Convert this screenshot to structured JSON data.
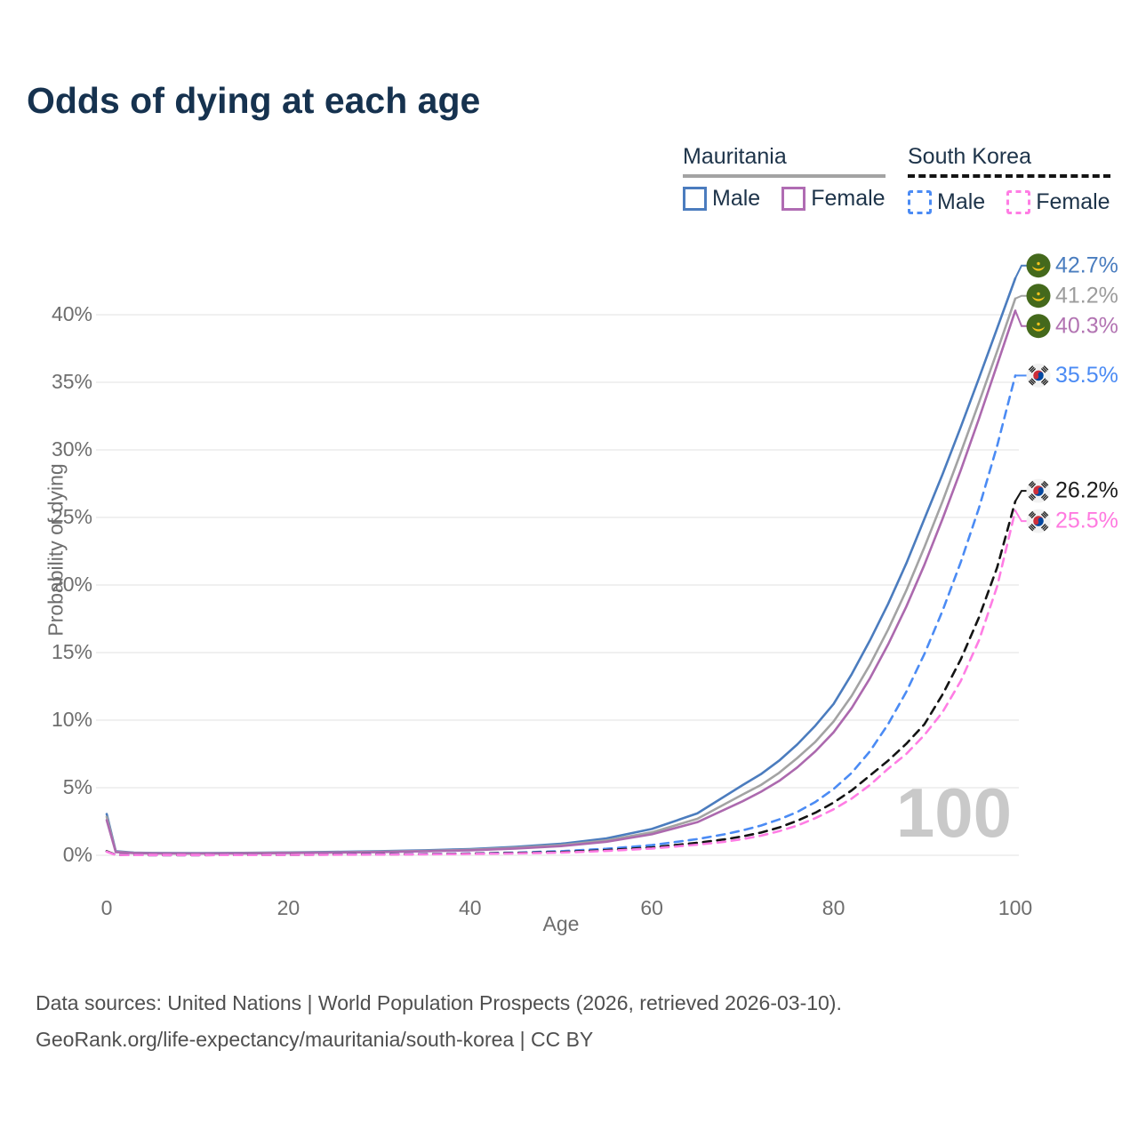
{
  "title": "Odds of dying at each age",
  "legend": {
    "groups": [
      {
        "label": "Mauritania",
        "line_style": "solid",
        "underline_color": "#a3a3a3",
        "items": [
          {
            "label": "Male",
            "color": "#4b7cbe"
          },
          {
            "label": "Female",
            "color": "#b06cb3"
          }
        ]
      },
      {
        "label": "South Korea",
        "line_style": "dashed",
        "underline_color": "#141414",
        "items": [
          {
            "label": "Male",
            "color": "#4b8bf4"
          },
          {
            "label": "Female",
            "color": "#ff7de4"
          }
        ]
      }
    ]
  },
  "chart_data": {
    "type": "line",
    "title": "Odds of dying at each age",
    "xlabel": "Age",
    "ylabel": "Probability of dying",
    "xlim": [
      0,
      100
    ],
    "ylim_pct": [
      0,
      44
    ],
    "grid": "horizontal",
    "watermark": "100",
    "x_ticks": [
      {
        "value": 0,
        "label": "0"
      },
      {
        "value": 20,
        "label": "20"
      },
      {
        "value": 40,
        "label": "40"
      },
      {
        "value": 60,
        "label": "60"
      },
      {
        "value": 80,
        "label": "80"
      },
      {
        "value": 100,
        "label": "100"
      }
    ],
    "y_ticks": [
      {
        "value": 0,
        "label": "0%"
      },
      {
        "value": 5,
        "label": "5%"
      },
      {
        "value": 10,
        "label": "10%"
      },
      {
        "value": 15,
        "label": "15%"
      },
      {
        "value": 20,
        "label": "20%"
      },
      {
        "value": 25,
        "label": "25%"
      },
      {
        "value": 30,
        "label": "30%"
      },
      {
        "value": 35,
        "label": "35%"
      },
      {
        "value": 40,
        "label": "40%"
      }
    ],
    "series": [
      {
        "name": "Mauritania Male",
        "country": "Mauritania",
        "sex": "Male",
        "color": "#4b7cbe",
        "dashed": false,
        "flag": "mauritania-flag-icon",
        "end_value": 42.7,
        "end_label": "42.7%",
        "label_color": "#4a7dbf",
        "points": [
          [
            0,
            3.05
          ],
          [
            1,
            0.3
          ],
          [
            3,
            0.2
          ],
          [
            5,
            0.17
          ],
          [
            10,
            0.16
          ],
          [
            15,
            0.18
          ],
          [
            20,
            0.21
          ],
          [
            25,
            0.25
          ],
          [
            30,
            0.3
          ],
          [
            35,
            0.37
          ],
          [
            40,
            0.46
          ],
          [
            45,
            0.62
          ],
          [
            50,
            0.85
          ],
          [
            55,
            1.25
          ],
          [
            60,
            1.95
          ],
          [
            65,
            3.1
          ],
          [
            70,
            5.2
          ],
          [
            72,
            6.0
          ],
          [
            74,
            7.0
          ],
          [
            76,
            8.2
          ],
          [
            78,
            9.6
          ],
          [
            80,
            11.2
          ],
          [
            82,
            13.4
          ],
          [
            84,
            15.9
          ],
          [
            86,
            18.6
          ],
          [
            88,
            21.6
          ],
          [
            90,
            24.9
          ],
          [
            92,
            28.2
          ],
          [
            94,
            31.7
          ],
          [
            96,
            35.3
          ],
          [
            98,
            39.0
          ],
          [
            100,
            42.7
          ]
        ]
      },
      {
        "name": "Mauritania Both sexes",
        "country": "Mauritania",
        "sex": "Both",
        "color": "#a3a3a3",
        "dashed": false,
        "flag": "mauritania-flag-icon",
        "end_value": 41.2,
        "end_label": "41.2%",
        "label_color": "#9c9c9c",
        "points": [
          [
            0,
            2.85
          ],
          [
            1,
            0.27
          ],
          [
            3,
            0.18
          ],
          [
            5,
            0.15
          ],
          [
            10,
            0.14
          ],
          [
            15,
            0.16
          ],
          [
            20,
            0.19
          ],
          [
            25,
            0.22
          ],
          [
            30,
            0.27
          ],
          [
            35,
            0.33
          ],
          [
            40,
            0.41
          ],
          [
            45,
            0.55
          ],
          [
            50,
            0.75
          ],
          [
            55,
            1.1
          ],
          [
            60,
            1.7
          ],
          [
            65,
            2.7
          ],
          [
            70,
            4.5
          ],
          [
            72,
            5.2
          ],
          [
            74,
            6.1
          ],
          [
            76,
            7.2
          ],
          [
            78,
            8.4
          ],
          [
            80,
            9.9
          ],
          [
            82,
            11.8
          ],
          [
            84,
            14.1
          ],
          [
            86,
            16.7
          ],
          [
            88,
            19.6
          ],
          [
            90,
            22.8
          ],
          [
            92,
            26.2
          ],
          [
            94,
            29.8
          ],
          [
            96,
            33.5
          ],
          [
            98,
            37.3
          ],
          [
            100,
            41.2
          ]
        ]
      },
      {
        "name": "Mauritania Female",
        "country": "Mauritania",
        "sex": "Female",
        "color": "#ac69ae",
        "dashed": false,
        "flag": "mauritania-flag-icon",
        "end_value": 40.3,
        "end_label": "40.3%",
        "label_color": "#b273b2",
        "points": [
          [
            0,
            2.6
          ],
          [
            1,
            0.24
          ],
          [
            3,
            0.16
          ],
          [
            5,
            0.14
          ],
          [
            10,
            0.13
          ],
          [
            15,
            0.14
          ],
          [
            20,
            0.17
          ],
          [
            25,
            0.2
          ],
          [
            30,
            0.24
          ],
          [
            35,
            0.3
          ],
          [
            40,
            0.37
          ],
          [
            45,
            0.5
          ],
          [
            50,
            0.68
          ],
          [
            55,
            1.0
          ],
          [
            60,
            1.55
          ],
          [
            65,
            2.45
          ],
          [
            70,
            4.0
          ],
          [
            72,
            4.7
          ],
          [
            74,
            5.5
          ],
          [
            76,
            6.5
          ],
          [
            78,
            7.7
          ],
          [
            80,
            9.1
          ],
          [
            82,
            10.9
          ],
          [
            84,
            13.1
          ],
          [
            86,
            15.6
          ],
          [
            88,
            18.4
          ],
          [
            90,
            21.5
          ],
          [
            92,
            24.9
          ],
          [
            94,
            28.5
          ],
          [
            96,
            32.3
          ],
          [
            98,
            36.3
          ],
          [
            100,
            40.3
          ]
        ]
      },
      {
        "name": "South Korea Male",
        "country": "South Korea",
        "sex": "Male",
        "color": "#4b8bf4",
        "dashed": true,
        "flag": "south-korea-flag-icon",
        "end_value": 35.5,
        "end_label": "35.5%",
        "label_color": "#4b8bf4",
        "points": [
          [
            0,
            0.28
          ],
          [
            1,
            0.03
          ],
          [
            5,
            0.015
          ],
          [
            10,
            0.015
          ],
          [
            15,
            0.03
          ],
          [
            20,
            0.045
          ],
          [
            25,
            0.06
          ],
          [
            30,
            0.08
          ],
          [
            35,
            0.1
          ],
          [
            40,
            0.14
          ],
          [
            45,
            0.2
          ],
          [
            50,
            0.3
          ],
          [
            55,
            0.48
          ],
          [
            60,
            0.75
          ],
          [
            65,
            1.2
          ],
          [
            68,
            1.55
          ],
          [
            70,
            1.85
          ],
          [
            72,
            2.2
          ],
          [
            74,
            2.65
          ],
          [
            76,
            3.2
          ],
          [
            78,
            3.95
          ],
          [
            80,
            4.9
          ],
          [
            82,
            6.1
          ],
          [
            84,
            7.7
          ],
          [
            86,
            9.7
          ],
          [
            88,
            12.1
          ],
          [
            90,
            14.9
          ],
          [
            92,
            18.1
          ],
          [
            94,
            21.7
          ],
          [
            96,
            25.7
          ],
          [
            98,
            30.3
          ],
          [
            100,
            35.5
          ]
        ]
      },
      {
        "name": "South Korea Both sexes",
        "country": "South Korea",
        "sex": "Both",
        "color": "#141414",
        "dashed": true,
        "flag": "south-korea-flag-icon",
        "end_value": 26.2,
        "end_label": "26.2%",
        "label_color": "#1c1c1c",
        "points": [
          [
            0,
            0.3
          ],
          [
            1,
            0.03
          ],
          [
            5,
            0.015
          ],
          [
            10,
            0.012
          ],
          [
            15,
            0.025
          ],
          [
            20,
            0.035
          ],
          [
            25,
            0.05
          ],
          [
            30,
            0.065
          ],
          [
            35,
            0.085
          ],
          [
            40,
            0.12
          ],
          [
            45,
            0.17
          ],
          [
            50,
            0.24
          ],
          [
            55,
            0.38
          ],
          [
            60,
            0.58
          ],
          [
            65,
            0.92
          ],
          [
            68,
            1.18
          ],
          [
            70,
            1.4
          ],
          [
            72,
            1.68
          ],
          [
            74,
            2.05
          ],
          [
            76,
            2.55
          ],
          [
            78,
            3.15
          ],
          [
            80,
            3.9
          ],
          [
            82,
            4.8
          ],
          [
            84,
            5.9
          ],
          [
            86,
            7.0
          ],
          [
            88,
            8.25
          ],
          [
            90,
            9.7
          ],
          [
            92,
            11.9
          ],
          [
            94,
            14.5
          ],
          [
            96,
            17.6
          ],
          [
            98,
            21.3
          ],
          [
            100,
            26.2
          ]
        ]
      },
      {
        "name": "South Korea Female",
        "country": "South Korea",
        "sex": "Female",
        "color": "#ff7de4",
        "dashed": true,
        "flag": "south-korea-flag-icon",
        "end_value": 25.5,
        "end_label": "25.5%",
        "label_color": "#ff7ae0",
        "points": [
          [
            0,
            0.26
          ],
          [
            1,
            0.025
          ],
          [
            5,
            0.012
          ],
          [
            10,
            0.01
          ],
          [
            15,
            0.02
          ],
          [
            20,
            0.03
          ],
          [
            25,
            0.04
          ],
          [
            30,
            0.055
          ],
          [
            35,
            0.075
          ],
          [
            40,
            0.1
          ],
          [
            45,
            0.14
          ],
          [
            50,
            0.2
          ],
          [
            55,
            0.32
          ],
          [
            60,
            0.5
          ],
          [
            65,
            0.78
          ],
          [
            68,
            1.0
          ],
          [
            70,
            1.2
          ],
          [
            72,
            1.45
          ],
          [
            74,
            1.78
          ],
          [
            76,
            2.2
          ],
          [
            78,
            2.75
          ],
          [
            80,
            3.4
          ],
          [
            82,
            4.2
          ],
          [
            84,
            5.2
          ],
          [
            86,
            6.4
          ],
          [
            88,
            7.5
          ],
          [
            90,
            8.9
          ],
          [
            92,
            10.6
          ],
          [
            94,
            12.9
          ],
          [
            96,
            15.9
          ],
          [
            98,
            19.9
          ],
          [
            100,
            25.5
          ]
        ]
      }
    ]
  },
  "flag_colors": {
    "mauritania_green": "#44691c",
    "mauritania_gold": "#f5c51d",
    "korea_bg": "#f2f2f2",
    "korea_red": "#cd2e3a",
    "korea_blue": "#0047a0",
    "korea_black": "#222222"
  },
  "footer": {
    "line1": "Data sources: United Nations | World Population Prospects (2026, retrieved 2026-03-10).",
    "line2": "GeoRank.org/life-expectancy/mauritania/south-korea | CC BY"
  }
}
